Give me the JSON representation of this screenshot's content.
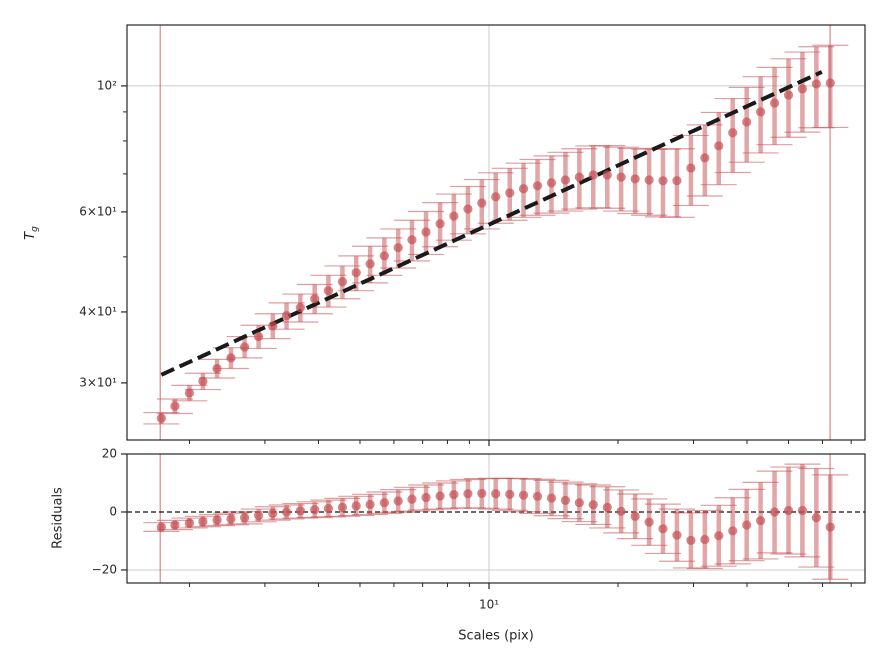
{
  "chart_data": [
    {
      "type": "errorbar",
      "xscale": "log",
      "yscale": "log",
      "ylabel": {
        "text": "T",
        "subscript": "g"
      },
      "x": [
        1.72,
        1.85,
        2.0,
        2.15,
        2.32,
        2.5,
        2.69,
        2.9,
        3.13,
        3.37,
        3.63,
        3.92,
        4.22,
        4.55,
        4.9,
        5.28,
        5.7,
        6.14,
        6.61,
        7.13,
        7.69,
        8.28,
        8.93,
        9.62,
        10.37,
        11.18,
        12.04,
        12.98,
        13.99,
        15.08,
        16.25,
        17.51,
        18.88,
        20.34,
        21.93,
        23.64,
        25.47,
        27.45,
        29.59,
        31.89,
        34.37,
        37.04,
        39.93,
        43.03,
        46.38,
        49.99,
        53.87,
        58.06,
        62.57
      ],
      "values": [
        26.0,
        27.3,
        28.8,
        30.2,
        31.8,
        33.2,
        34.7,
        36.2,
        37.8,
        39.4,
        40.7,
        42.2,
        43.6,
        45.2,
        46.9,
        48.6,
        50.2,
        51.9,
        53.6,
        55.3,
        57.2,
        59.0,
        60.7,
        62.2,
        63.8,
        64.8,
        65.9,
        66.7,
        67.5,
        68.3,
        69.1,
        69.7,
        69.7,
        69.1,
        68.6,
        68.3,
        68.1,
        68.1,
        71.7,
        74.7,
        78.4,
        82.7,
        86.4,
        90.0,
        93.3,
        96.4,
        98.8,
        100.8,
        101.2
      ],
      "errors": [
        0.6,
        0.8,
        0.9,
        1.0,
        1.2,
        1.4,
        1.5,
        1.7,
        1.9,
        2.1,
        2.3,
        2.5,
        2.8,
        3.0,
        3.3,
        3.6,
        3.8,
        4.1,
        4.4,
        4.8,
        5.1,
        5.5,
        5.8,
        6.2,
        6.5,
        6.8,
        7.2,
        7.5,
        7.8,
        8.1,
        8.4,
        8.7,
        8.8,
        8.9,
        9.0,
        9.1,
        9.3,
        9.4,
        10.1,
        10.7,
        11.4,
        12.3,
        13.0,
        13.8,
        14.5,
        15.2,
        15.9,
        16.4,
        16.7
      ],
      "color": "#c44e52",
      "fit": {
        "x": [
          1.72,
          59.8
        ],
        "values": [
          31.0,
          105.8
        ],
        "color": "#1a1a1a"
      },
      "vlines": [
        1.71,
        62.5
      ],
      "xlim": [
        1.43,
        75.4
      ],
      "ylim": [
        23.8,
        128
      ],
      "xtick_marks": [
        10
      ],
      "xminor_ticks": [
        2,
        3,
        4,
        5,
        6,
        7,
        8,
        9,
        20,
        30,
        40,
        50,
        60,
        70
      ],
      "yticks": [
        {
          "value": 100,
          "label": "10²"
        },
        {
          "value": 60,
          "label": "6×10¹"
        },
        {
          "value": 40,
          "label": "4×10¹"
        },
        {
          "value": 30,
          "label": "3×10¹"
        }
      ],
      "yminor_ticks": [
        50,
        70,
        80,
        90
      ],
      "xgrid": [
        10
      ],
      "ygrid": [
        100
      ]
    },
    {
      "type": "errorbar",
      "xscale": "log",
      "yscale": "linear",
      "ylabel": "Residuals",
      "xlabel": "Scales (pix)",
      "x": [
        1.72,
        1.85,
        2.0,
        2.15,
        2.32,
        2.5,
        2.69,
        2.9,
        3.13,
        3.37,
        3.63,
        3.92,
        4.22,
        4.55,
        4.9,
        5.28,
        5.7,
        6.14,
        6.61,
        7.13,
        7.69,
        8.28,
        8.93,
        9.62,
        10.37,
        11.18,
        12.04,
        12.98,
        13.99,
        15.08,
        16.25,
        17.51,
        18.88,
        20.34,
        21.93,
        23.64,
        25.47,
        27.45,
        29.59,
        31.89,
        34.37,
        37.04,
        39.93,
        43.03,
        46.38,
        49.99,
        53.87,
        58.06,
        62.57
      ],
      "values": [
        -5.2,
        -4.5,
        -3.8,
        -3.3,
        -2.8,
        -2.4,
        -2.0,
        -1.2,
        -0.5,
        0.0,
        0.4,
        0.8,
        1.2,
        1.6,
        2.1,
        2.6,
        3.2,
        3.8,
        4.4,
        5.0,
        5.5,
        6.0,
        6.3,
        6.4,
        6.3,
        6.1,
        5.8,
        5.4,
        4.8,
        4.0,
        3.2,
        2.5,
        1.6,
        0.2,
        -1.5,
        -3.5,
        -5.8,
        -8.0,
        -9.8,
        -9.5,
        -8.2,
        -6.5,
        -4.5,
        -3.0,
        0.0,
        0.5,
        0.5,
        -2.0,
        -5.2
      ],
      "errors": [
        1.5,
        1.6,
        1.7,
        1.8,
        1.9,
        2.0,
        2.1,
        2.2,
        2.3,
        2.4,
        2.5,
        2.7,
        2.9,
        3.1,
        3.3,
        3.5,
        3.7,
        3.9,
        4.1,
        4.3,
        4.5,
        4.7,
        4.9,
        5.1,
        5.3,
        5.5,
        5.7,
        5.9,
        6.1,
        6.3,
        6.5,
        6.8,
        7.1,
        7.4,
        7.7,
        8.0,
        8.5,
        9.0,
        9.5,
        10.0,
        10.5,
        11.4,
        12.3,
        13.2,
        14.1,
        15.0,
        16.0,
        17.0,
        18.0
      ],
      "color": "#c44e52",
      "hline": 0,
      "vlines": [
        1.71,
        62.5
      ],
      "xlim": [
        1.43,
        75.4
      ],
      "ylim": [
        -24.5,
        20
      ],
      "xticks": [
        {
          "value": 10,
          "label": "10¹"
        }
      ],
      "xminor_ticks": [
        2,
        3,
        4,
        5,
        6,
        7,
        8,
        9,
        20,
        30,
        40,
        50,
        60,
        70
      ],
      "yticks": [
        20,
        0,
        {
          "value": -20,
          "label": "−20"
        }
      ],
      "xgrid": [
        10
      ],
      "ygrid": [
        20,
        -20
      ]
    }
  ]
}
